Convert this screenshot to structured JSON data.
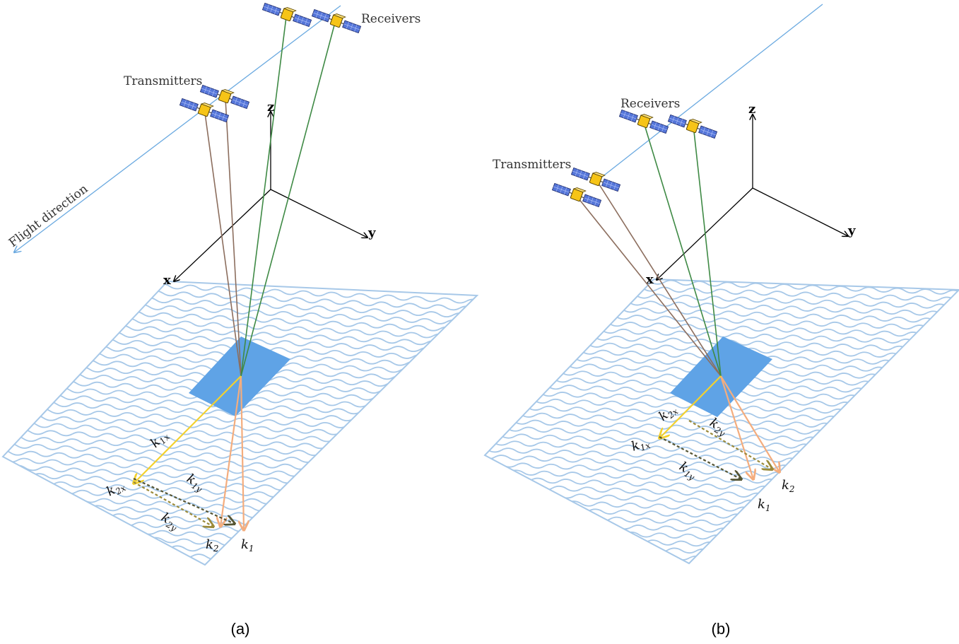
{
  "panels": [
    {
      "id": "a",
      "caption": "(a)",
      "flight_label": "Flight direction",
      "transmitters_label": "Transmitters",
      "receivers_label": "Receivers",
      "axes": {
        "x": "x",
        "y": "y",
        "z": "z"
      },
      "vectors": {
        "k1": {
          "base": "k",
          "sub": "1"
        },
        "k2": {
          "base": "k",
          "sub": "2"
        },
        "k1x": {
          "base": "k",
          "sub": "1x"
        },
        "k1y": {
          "base": "k",
          "sub": "1y"
        },
        "k2x": {
          "base": "k",
          "sub": "2x"
        },
        "k2y": {
          "base": "k",
          "sub": "2y"
        }
      }
    },
    {
      "id": "b",
      "caption": "(b)",
      "transmitters_label": "Transmitters",
      "receivers_label": "Receivers",
      "axes": {
        "x": "x",
        "y": "y",
        "z": "z"
      },
      "vectors": {
        "k1": {
          "base": "k",
          "sub": "1"
        },
        "k2": {
          "base": "k",
          "sub": "2"
        },
        "k1x": {
          "base": "k",
          "sub": "1x"
        },
        "k1y": {
          "base": "k",
          "sub": "1y"
        },
        "k2x": {
          "base": "k",
          "sub": "2x"
        },
        "k2y": {
          "base": "k",
          "sub": "2y"
        }
      }
    }
  ],
  "colors": {
    "ocean_line": "#a7c8e8",
    "flight_line": "#6aa9e0",
    "patch": "#5fa3e6",
    "tx_ray": "#8c6e5e",
    "rx_ray": "#3f8a45",
    "k1_arrow": "#f4ad7e",
    "k_x_arrow": "#f3d12e",
    "k_dash_dark": "#555533",
    "k_dash_light": "#9a8a3a",
    "sat_body": "#f6c417",
    "sat_panel": "#5576d9"
  },
  "icons": [
    "satellite-icon"
  ]
}
